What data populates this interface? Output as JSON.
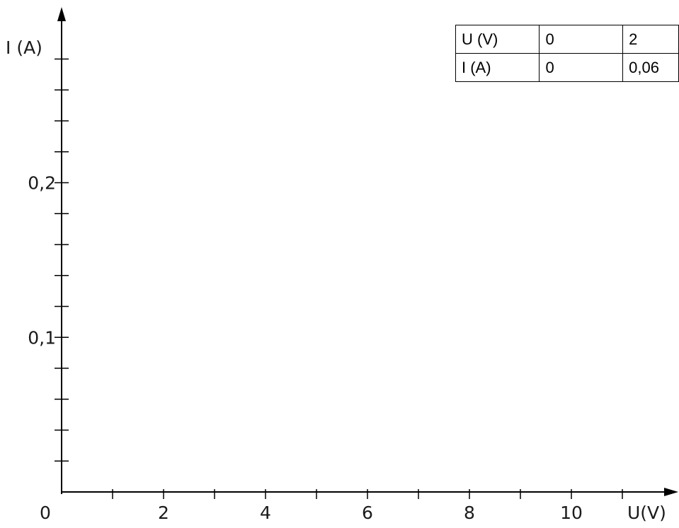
{
  "chart_data": {
    "type": "scatter",
    "title": "",
    "xlabel": "U(V)",
    "ylabel": "I (A)",
    "xlim": [
      0,
      12
    ],
    "ylim": [
      0,
      0.3
    ],
    "x_ticks": [
      0,
      1,
      2,
      3,
      4,
      5,
      6,
      7,
      8,
      9,
      10,
      11
    ],
    "x_tick_labels": [
      "0",
      "2",
      "4",
      "6",
      "8",
      "10"
    ],
    "x_tick_label_values": [
      0,
      2,
      4,
      6,
      8,
      10
    ],
    "y_ticks": [
      0.02,
      0.04,
      0.06,
      0.08,
      0.1,
      0.12,
      0.14,
      0.16,
      0.18,
      0.2,
      0.22,
      0.24,
      0.26,
      0.28
    ],
    "y_tick_labels": [
      "0,1",
      "0,2"
    ],
    "y_tick_label_values": [
      0.1,
      0.2
    ],
    "grid": false,
    "series": []
  },
  "table": {
    "rows": [
      [
        "U (V)",
        "0",
        "2"
      ],
      [
        "I (A)",
        "0",
        "0,06"
      ]
    ]
  }
}
